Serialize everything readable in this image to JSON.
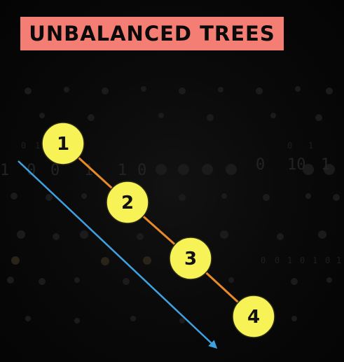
{
  "title": "UNBALANCED TREES",
  "colors": {
    "title_bg": "#f47e74",
    "node_fill": "#f7f256",
    "node_stroke": "#2a2a1a",
    "edge": "#e8892a",
    "arrow": "#3fa2e0",
    "background": "#060606"
  },
  "tree": {
    "nodes": [
      {
        "id": "1",
        "label": "1"
      },
      {
        "id": "2",
        "label": "2"
      },
      {
        "id": "3",
        "label": "3"
      },
      {
        "id": "4",
        "label": "4"
      }
    ],
    "edges": [
      {
        "from": "1",
        "to": "2"
      },
      {
        "from": "2",
        "to": "3"
      },
      {
        "from": "3",
        "to": "4"
      }
    ]
  },
  "arrow": {
    "direction": "down-right"
  }
}
